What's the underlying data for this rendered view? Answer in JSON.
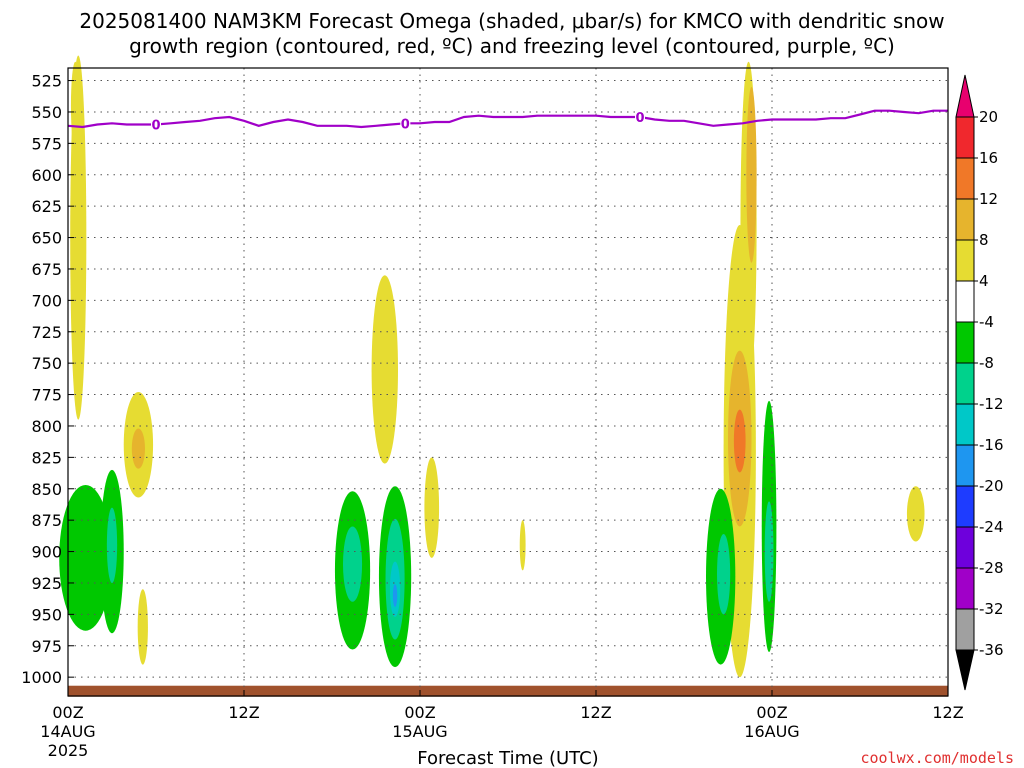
{
  "title_line1": "2025081400 NAM3KM Forecast Omega (shaded, μbar/s) for KMCO with dendritic snow",
  "title_line2": "growth region (contoured, red, ºC) and freezing level (contoured, purple, ºC)",
  "credit": "coolwx.com/models",
  "colors": {
    "freezing_level": "#a000c8",
    "ground": "#a0522d",
    "grid": "#555555"
  },
  "chart_data": {
    "type": "heatmap",
    "title": "2025081400 NAM3KM Forecast Omega (shaded, μbar/s) for KMCO with dendritic snow growth region (contoured, red, ºC) and freezing level (contoured, purple, ºC)",
    "xlabel": "Forecast Time (UTC)",
    "ylabel": "",
    "x_range_hours": [
      0,
      60
    ],
    "y_range_mb": [
      515,
      1015
    ],
    "y_reversed": true,
    "grid": true,
    "x_ticks": [
      {
        "hour": 0,
        "lines": [
          "00Z",
          "14AUG",
          "2025"
        ]
      },
      {
        "hour": 12,
        "lines": [
          "12Z"
        ]
      },
      {
        "hour": 24,
        "lines": [
          "00Z",
          "15AUG"
        ]
      },
      {
        "hour": 36,
        "lines": [
          "12Z"
        ]
      },
      {
        "hour": 48,
        "lines": [
          "00Z",
          "16AUG"
        ]
      },
      {
        "hour": 60,
        "lines": [
          "12Z"
        ]
      }
    ],
    "y_ticks": [
      525,
      550,
      575,
      600,
      625,
      650,
      675,
      700,
      725,
      750,
      775,
      800,
      825,
      850,
      875,
      900,
      925,
      950,
      975,
      1000
    ],
    "colorbar": {
      "labels": [
        "20",
        "16",
        "12",
        "8",
        "4",
        "-4",
        "-8",
        "-12",
        "-16",
        "-20",
        "-24",
        "-28",
        "-32",
        "-36"
      ],
      "bins": [
        {
          "color": "#e8006e"
        },
        {
          "color": "#f0282d"
        },
        {
          "color": "#f07828"
        },
        {
          "color": "#e6b42d"
        },
        {
          "color": "#e6dc32"
        },
        {
          "color": "#ffffff"
        },
        {
          "color": "#00c800"
        },
        {
          "color": "#00d28c"
        },
        {
          "color": "#00c8c8"
        },
        {
          "color": "#1e96f0"
        },
        {
          "color": "#1e3cff"
        },
        {
          "color": "#6e00dc"
        },
        {
          "color": "#a000c8"
        },
        {
          "color": "#a0a0a0"
        },
        {
          "color": "#000000"
        }
      ]
    },
    "freezing_level": {
      "label": "0",
      "label_hours": [
        6.0,
        23.0,
        39.0
      ],
      "hours": [
        0,
        1,
        2,
        3,
        4,
        5,
        6,
        7,
        8,
        9,
        10,
        11,
        12,
        13,
        14,
        15,
        16,
        17,
        18,
        19,
        20,
        21,
        22,
        23,
        24,
        25,
        26,
        27,
        28,
        29,
        30,
        31,
        32,
        33,
        34,
        35,
        36,
        37,
        38,
        39,
        40,
        41,
        42,
        43,
        44,
        45,
        46,
        47,
        48,
        49,
        50,
        51,
        52,
        53,
        54,
        55,
        56,
        57,
        58,
        59,
        60
      ],
      "mb": [
        561,
        562,
        560,
        559,
        560,
        560,
        560,
        559,
        558,
        557,
        555,
        554,
        557,
        561,
        558,
        556,
        558,
        561,
        561,
        561,
        562,
        561,
        560,
        559,
        559,
        558,
        558,
        554,
        553,
        554,
        554,
        554,
        553,
        553,
        553,
        553,
        553,
        554,
        554,
        554,
        556,
        557,
        557,
        559,
        561,
        560,
        559,
        557,
        556,
        556,
        556,
        556,
        555,
        555,
        552,
        549,
        549,
        550,
        551,
        549,
        549
      ]
    },
    "ground_mb": 1010,
    "omega_regions": [
      {
        "color": "#e6dc32",
        "hour": 0.7,
        "mb": 650,
        "hw_hours": 0.55,
        "hh_mb": 145
      },
      {
        "color": "#e6dc32",
        "hour": 0.5,
        "mb": 545,
        "hw_hours": 0.3,
        "hh_mb": 35
      },
      {
        "color": "#e6dc32",
        "hour": 4.8,
        "mb": 815,
        "hw_hours": 1.0,
        "hh_mb": 42
      },
      {
        "color": "#e6b42d",
        "hour": 4.8,
        "mb": 818,
        "hw_hours": 0.45,
        "hh_mb": 16
      },
      {
        "color": "#e6dc32",
        "hour": 5.1,
        "mb": 960,
        "hw_hours": 0.35,
        "hh_mb": 30
      },
      {
        "color": "#00c800",
        "hour": 1.2,
        "mb": 905,
        "hw_hours": 1.8,
        "hh_mb": 58
      },
      {
        "color": "#00c800",
        "hour": 3.0,
        "mb": 900,
        "hw_hours": 0.8,
        "hh_mb": 65
      },
      {
        "color": "#00d28c",
        "hour": 3.0,
        "mb": 895,
        "hw_hours": 0.35,
        "hh_mb": 30
      },
      {
        "color": "#e6dc32",
        "hour": 21.6,
        "mb": 755,
        "hw_hours": 0.9,
        "hh_mb": 75
      },
      {
        "color": "#00c800",
        "hour": 19.4,
        "mb": 915,
        "hw_hours": 1.2,
        "hh_mb": 63
      },
      {
        "color": "#00d28c",
        "hour": 19.4,
        "mb": 910,
        "hw_hours": 0.65,
        "hh_mb": 30
      },
      {
        "color": "#00c800",
        "hour": 22.3,
        "mb": 920,
        "hw_hours": 1.1,
        "hh_mb": 72
      },
      {
        "color": "#00d28c",
        "hour": 22.3,
        "mb": 922,
        "hw_hours": 0.65,
        "hh_mb": 48
      },
      {
        "color": "#00c8c8",
        "hour": 22.3,
        "mb": 930,
        "hw_hours": 0.35,
        "hh_mb": 22
      },
      {
        "color": "#1e96f0",
        "hour": 22.3,
        "mb": 935,
        "hw_hours": 0.15,
        "hh_mb": 9
      },
      {
        "color": "#e6dc32",
        "hour": 24.8,
        "mb": 865,
        "hw_hours": 0.5,
        "hh_mb": 40
      },
      {
        "color": "#e6dc32",
        "hour": 31.0,
        "mb": 895,
        "hw_hours": 0.2,
        "hh_mb": 20
      },
      {
        "color": "#e6dc32",
        "hour": 46.4,
        "mb": 640,
        "hw_hours": 0.55,
        "hh_mb": 130
      },
      {
        "color": "#e6b42d",
        "hour": 46.6,
        "mb": 600,
        "hw_hours": 0.35,
        "hh_mb": 70
      },
      {
        "color": "#e6dc32",
        "hour": 45.8,
        "mb": 820,
        "hw_hours": 1.1,
        "hh_mb": 180
      },
      {
        "color": "#e6b42d",
        "hour": 45.8,
        "mb": 810,
        "hw_hours": 0.8,
        "hh_mb": 70
      },
      {
        "color": "#f07828",
        "hour": 45.8,
        "mb": 812,
        "hw_hours": 0.4,
        "hh_mb": 25
      },
      {
        "color": "#00c800",
        "hour": 44.5,
        "mb": 920,
        "hw_hours": 1.0,
        "hh_mb": 70
      },
      {
        "color": "#00d28c",
        "hour": 44.7,
        "mb": 918,
        "hw_hours": 0.45,
        "hh_mb": 32
      },
      {
        "color": "#00c800",
        "hour": 47.8,
        "mb": 880,
        "hw_hours": 0.5,
        "hh_mb": 100
      },
      {
        "color": "#00d28c",
        "hour": 47.8,
        "mb": 900,
        "hw_hours": 0.3,
        "hh_mb": 40
      },
      {
        "color": "#e6dc32",
        "hour": 57.8,
        "mb": 870,
        "hw_hours": 0.6,
        "hh_mb": 22
      }
    ]
  }
}
